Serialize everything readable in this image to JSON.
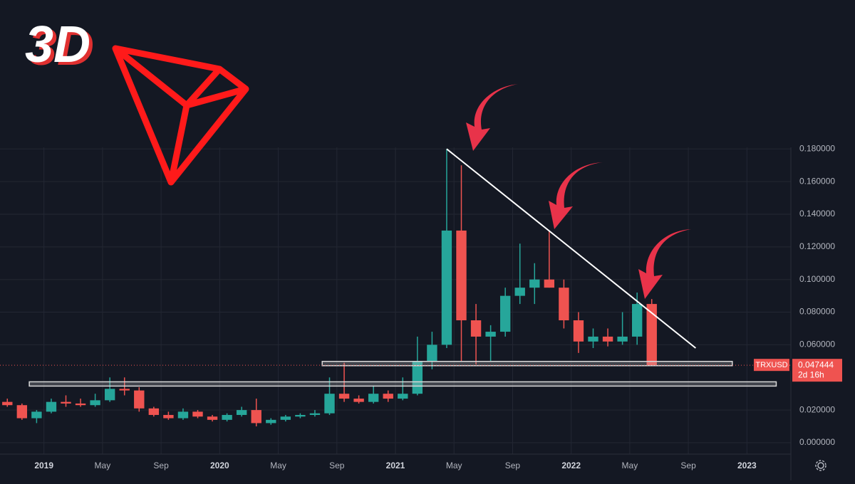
{
  "brand": {
    "text": "3D"
  },
  "chart_data": {
    "type": "candlestick",
    "symbol": "TRXUSD",
    "last_price": 0.047444,
    "countdown": "2d 16h",
    "up_color": "#26a69a",
    "down_color": "#ef5350",
    "x": [
      "2018-10",
      "2018-11",
      "2018-12",
      "2019-01",
      "2019-02",
      "2019-03",
      "2019-04",
      "2019-05",
      "2019-06",
      "2019-07",
      "2019-08",
      "2019-09",
      "2019-10",
      "2019-11",
      "2019-12",
      "2020-01",
      "2020-02",
      "2020-03",
      "2020-04",
      "2020-05",
      "2020-06",
      "2020-07",
      "2020-08",
      "2020-09",
      "2020-10",
      "2020-11",
      "2020-12",
      "2021-01",
      "2021-02",
      "2021-03",
      "2021-04",
      "2021-05",
      "2021-06",
      "2021-07",
      "2021-08",
      "2021-09",
      "2021-10",
      "2021-11",
      "2021-12",
      "2022-01",
      "2022-02",
      "2022-03",
      "2022-04",
      "2022-05",
      "2022-06"
    ],
    "open": [
      0.025,
      0.023,
      0.015,
      0.019,
      0.025,
      0.024,
      0.023,
      0.026,
      0.033,
      0.032,
      0.021,
      0.017,
      0.015,
      0.019,
      0.016,
      0.014,
      0.017,
      0.02,
      0.012,
      0.014,
      0.016,
      0.017,
      0.018,
      0.03,
      0.027,
      0.025,
      0.03,
      0.027,
      0.03,
      0.05,
      0.06,
      0.13,
      0.075,
      0.065,
      0.068,
      0.09,
      0.095,
      0.1,
      0.095,
      0.075,
      0.062,
      0.065,
      0.062,
      0.065,
      0.085
    ],
    "high": [
      0.027,
      0.024,
      0.02,
      0.027,
      0.029,
      0.027,
      0.03,
      0.04,
      0.04,
      0.034,
      0.022,
      0.019,
      0.021,
      0.02,
      0.017,
      0.018,
      0.022,
      0.027,
      0.015,
      0.017,
      0.018,
      0.02,
      0.04,
      0.049,
      0.029,
      0.035,
      0.032,
      0.04,
      0.065,
      0.068,
      0.18,
      0.17,
      0.085,
      0.072,
      0.095,
      0.122,
      0.11,
      0.13,
      0.1,
      0.08,
      0.07,
      0.07,
      0.08,
      0.092,
      0.088
    ],
    "low": [
      0.022,
      0.014,
      0.012,
      0.018,
      0.022,
      0.022,
      0.022,
      0.025,
      0.029,
      0.019,
      0.016,
      0.014,
      0.014,
      0.015,
      0.013,
      0.013,
      0.016,
      0.01,
      0.011,
      0.013,
      0.015,
      0.016,
      0.017,
      0.025,
      0.024,
      0.024,
      0.025,
      0.026,
      0.029,
      0.045,
      0.058,
      0.05,
      0.048,
      0.05,
      0.065,
      0.085,
      0.085,
      0.095,
      0.07,
      0.055,
      0.058,
      0.059,
      0.06,
      0.06,
      0.047
    ],
    "close": [
      0.023,
      0.015,
      0.019,
      0.025,
      0.024,
      0.023,
      0.026,
      0.033,
      0.032,
      0.021,
      0.017,
      0.015,
      0.019,
      0.016,
      0.014,
      0.017,
      0.02,
      0.012,
      0.014,
      0.016,
      0.017,
      0.018,
      0.03,
      0.027,
      0.025,
      0.03,
      0.027,
      0.03,
      0.05,
      0.06,
      0.13,
      0.075,
      0.065,
      0.068,
      0.09,
      0.095,
      0.1,
      0.095,
      0.075,
      0.062,
      0.065,
      0.062,
      0.065,
      0.085,
      0.047444
    ],
    "xlim": [
      "2018-10",
      "2023-04"
    ],
    "xticks": [
      {
        "value": "2019-01",
        "label": "2019"
      },
      {
        "value": "2019-05",
        "label": "May"
      },
      {
        "value": "2019-09",
        "label": "Sep"
      },
      {
        "value": "2020-01",
        "label": "2020"
      },
      {
        "value": "2020-05",
        "label": "May"
      },
      {
        "value": "2020-09",
        "label": "Sep"
      },
      {
        "value": "2021-01",
        "label": "2021"
      },
      {
        "value": "2021-05",
        "label": "May"
      },
      {
        "value": "2021-09",
        "label": "Sep"
      },
      {
        "value": "2022-01",
        "label": "2022"
      },
      {
        "value": "2022-05",
        "label": "May"
      },
      {
        "value": "2022-09",
        "label": "Sep"
      },
      {
        "value": "2023-01",
        "label": "2023"
      }
    ],
    "ylim": [
      -0.007,
      0.181
    ],
    "yticks": [
      {
        "value": 0,
        "label": "0.000000"
      },
      {
        "value": 0.02,
        "label": "0.020000"
      },
      {
        "value": 0.06,
        "label": "0.060000"
      },
      {
        "value": 0.08,
        "label": "0.080000"
      },
      {
        "value": 0.1,
        "label": "0.100000"
      },
      {
        "value": 0.12,
        "label": "0.120000"
      },
      {
        "value": 0.14,
        "label": "0.140000"
      },
      {
        "value": 0.16,
        "label": "0.160000"
      },
      {
        "value": 0.18,
        "label": "0.180000"
      }
    ],
    "grid": true,
    "trendline": {
      "x": [
        "2021-04",
        "2022-09"
      ],
      "y": [
        0.18,
        0.058
      ]
    },
    "support_lines": [
      {
        "value": 0.0485,
        "from": "2020-08",
        "to": "2022-12"
      },
      {
        "value": 0.036,
        "from": "2018-12",
        "to": "2023-03"
      }
    ]
  }
}
